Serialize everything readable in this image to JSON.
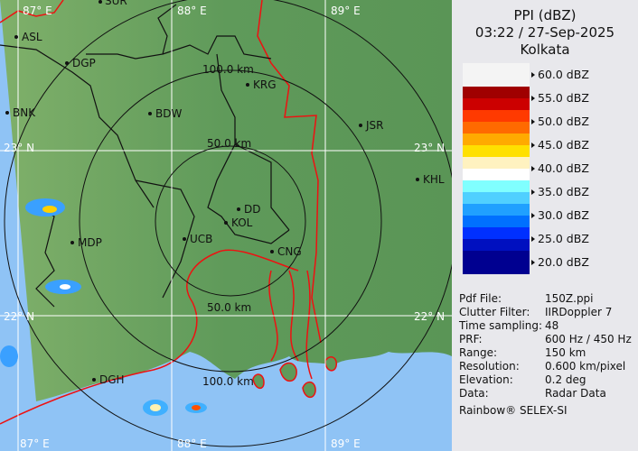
{
  "header": {
    "product": "PPI (dBZ)",
    "datetime": "03:22 / 27-Sep-2025",
    "site": "Kolkata"
  },
  "legend": [
    {
      "label": "60.0 dBZ",
      "colors": [
        "#f4f4f4",
        "#f4f4f4"
      ]
    },
    {
      "label": "55.0 dBZ",
      "colors": [
        "#a00000",
        "#cc0000"
      ]
    },
    {
      "label": "50.0 dBZ",
      "colors": [
        "#ff3a00",
        "#ff6a00"
      ]
    },
    {
      "label": "45.0 dBZ",
      "colors": [
        "#ffaa00",
        "#ffe000"
      ]
    },
    {
      "label": "40.0 dBZ",
      "colors": [
        "#fff2c0",
        "#ffffff"
      ]
    },
    {
      "label": "35.0 dBZ",
      "colors": [
        "#80ffff",
        "#50d0ff"
      ]
    },
    {
      "label": "30.0 dBZ",
      "colors": [
        "#20a0ff",
        "#0070ff"
      ]
    },
    {
      "label": "25.0 dBZ",
      "colors": [
        "#0030ff",
        "#0010c0"
      ]
    },
    {
      "label": "20.0 dBZ",
      "colors": [
        "#000090",
        "#000090"
      ]
    }
  ],
  "info": [
    {
      "key": "Pdf File:",
      "value": "150Z.ppi"
    },
    {
      "key": "Clutter Filter:",
      "value": "IIRDoppler 7"
    },
    {
      "key": "Time sampling:",
      "value": "48"
    },
    {
      "key": "PRF:",
      "value": "600 Hz / 450 Hz"
    },
    {
      "key": "Range:",
      "value": "150 km"
    },
    {
      "key": "Resolution:",
      "value": "0.600 km/pixel"
    },
    {
      "key": "Elevation:",
      "value": "0.2 deg"
    },
    {
      "key": "Data:",
      "value": "Radar Data"
    }
  ],
  "footer": "Rainbow® SELEX-SI",
  "map": {
    "lon_labels": [
      "87° E",
      "88° E",
      "89° E"
    ],
    "lat_labels": [
      "23° N",
      "22° N"
    ],
    "range_labels": {
      "r100_north": "100.0 km",
      "r50_north": "50.0 km",
      "r50_south": "50.0 km",
      "r100_south": "100.0 km"
    },
    "stations": [
      "SUR",
      "ASL",
      "DGP",
      "BNK",
      "BDW",
      "KRG",
      "JSR",
      "KHL",
      "MDP",
      "UCB",
      "DD",
      "KOL",
      "CNG",
      "DGH"
    ],
    "colors": {
      "land": "#5f9a5a",
      "sea": "#8fc3f5",
      "border": "#ee1111",
      "district": "#111111"
    }
  }
}
